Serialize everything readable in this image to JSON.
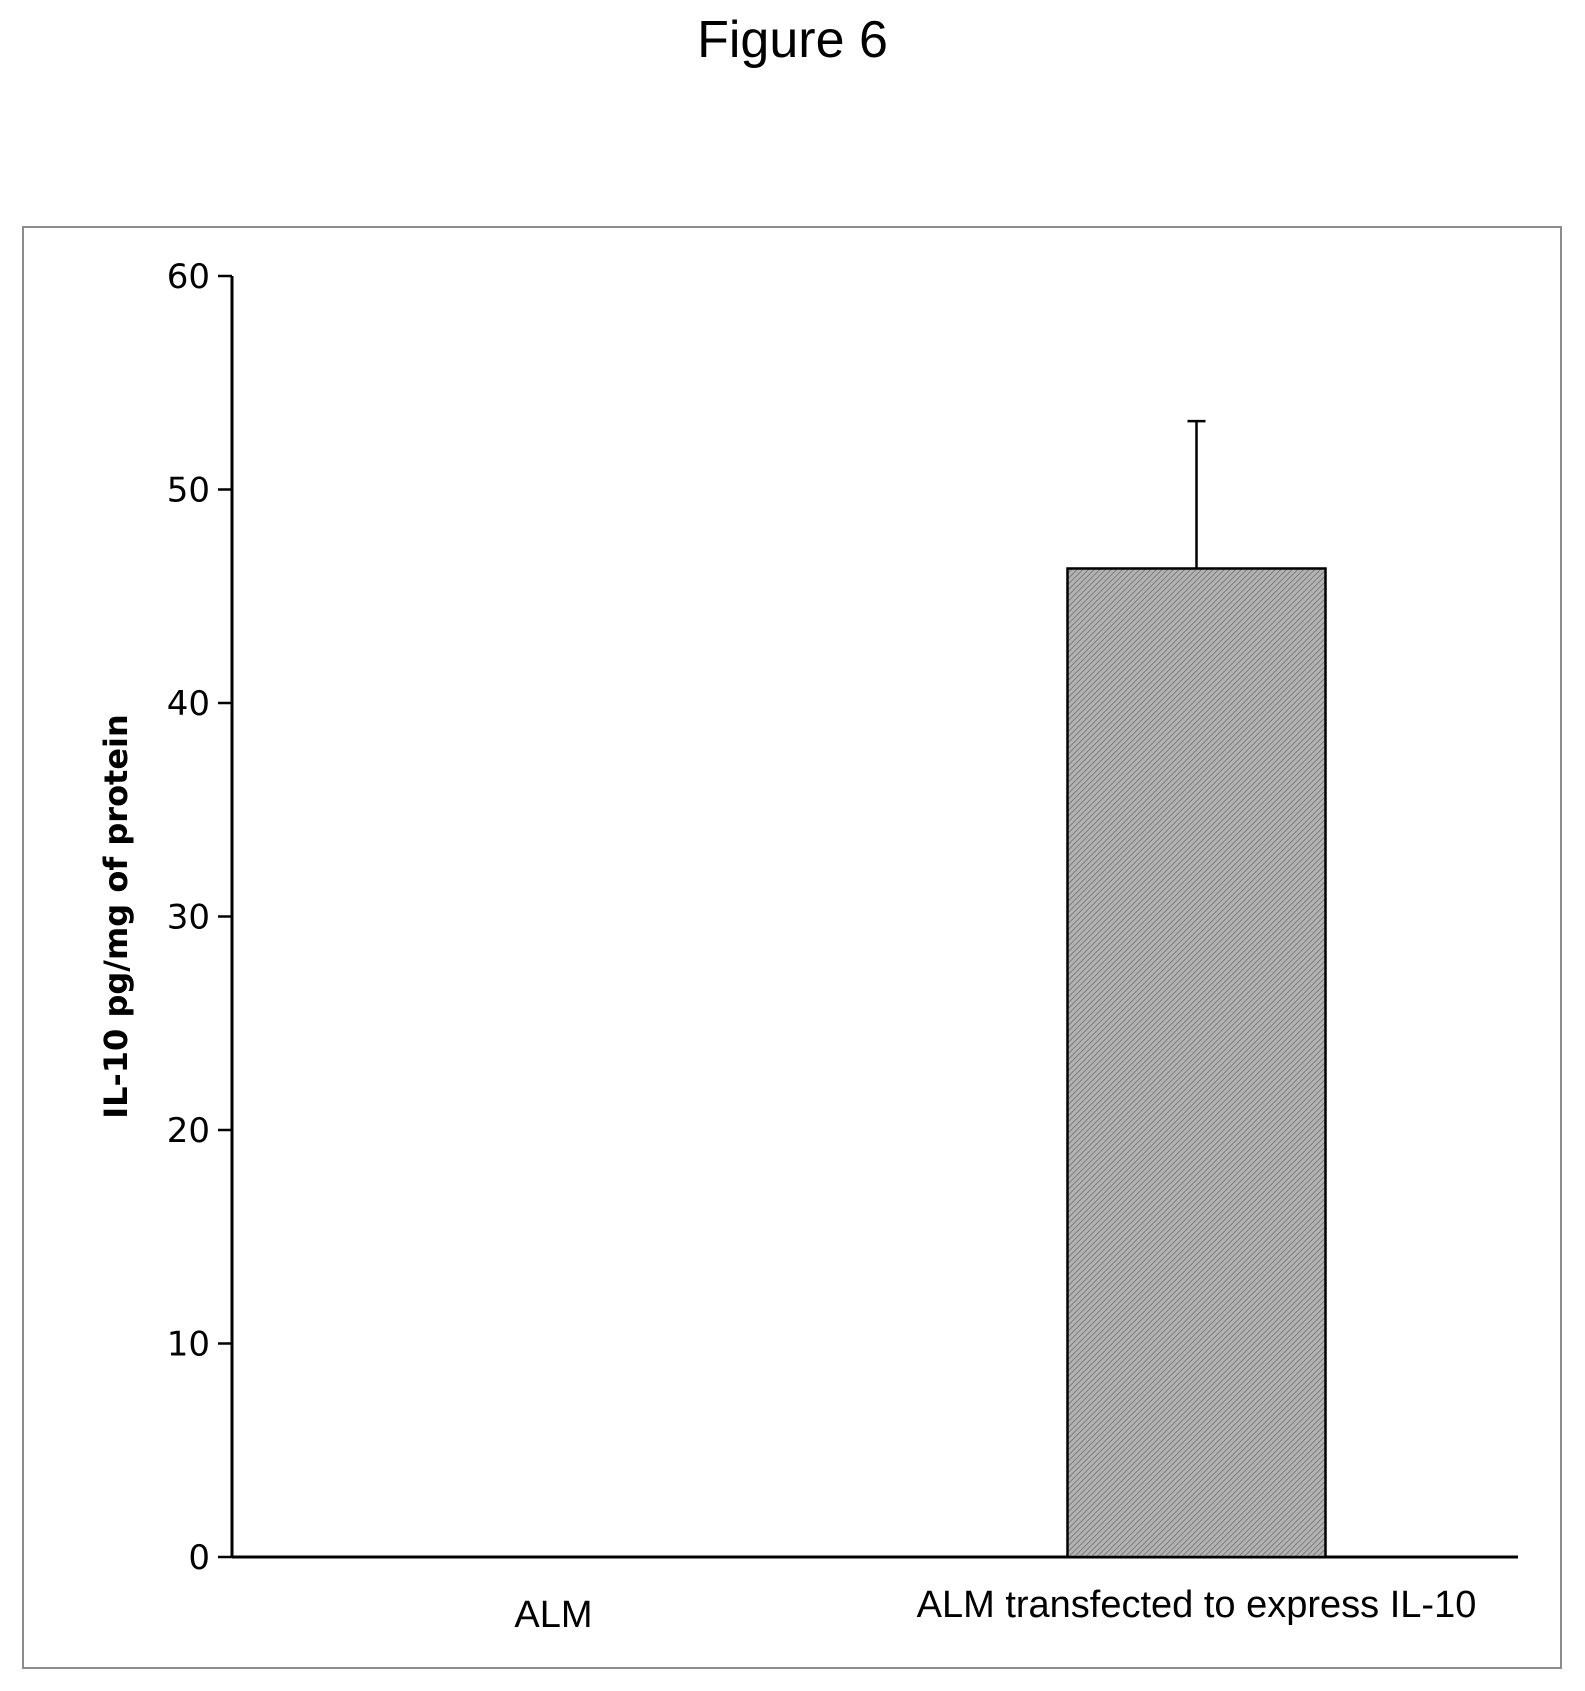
{
  "figure_title": "Figure 6",
  "chart_data": {
    "type": "bar",
    "categories": [
      "ALM",
      "ALM transfected to express IL-10"
    ],
    "values": [
      0,
      46.3
    ],
    "error_plus": [
      0,
      6.9
    ],
    "ylabel": "IL-10 pg/mg of protein",
    "xlabel": "",
    "ylim": [
      0,
      60
    ],
    "yticks": [
      0,
      10,
      20,
      30,
      40,
      50,
      60
    ],
    "grid": false,
    "bar_fill": "#a6a6a6",
    "bar_stroke": "#000000"
  }
}
